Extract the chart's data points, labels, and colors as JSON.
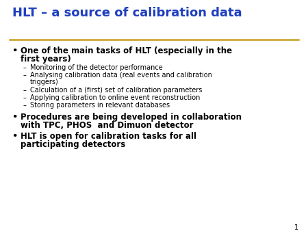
{
  "title": "HLT – a source of calibration data",
  "title_color": "#1F3FBF",
  "title_fontsize": 13,
  "separator_color": "#C8A020",
  "background_color": "#FFFFFF",
  "page_number": "1",
  "bullet1_line1": "One of the main tasks of HLT (especially in the",
  "bullet1_line2": "first years)",
  "sub_bullets1": [
    "Monitoring of the detector performance",
    "Analysing calibration data (real events and calibration\n    triggers)",
    "Calculation of a (first) set of calibration parameters",
    "Applying calibration to online event reconstruction",
    "Storing parameters in relevant databases"
  ],
  "bullet2_line1": "Procedures are being developed in collaboration",
  "bullet2_line2": "with TPC, PHOS  and Dimuon detector",
  "bullet3_line1": "HLT is open for calibration tasks for all",
  "bullet3_line2": "participating detectors",
  "bullet_fontsize": 8.5,
  "sub_bullet_fontsize": 7.0,
  "page_fontsize": 7
}
